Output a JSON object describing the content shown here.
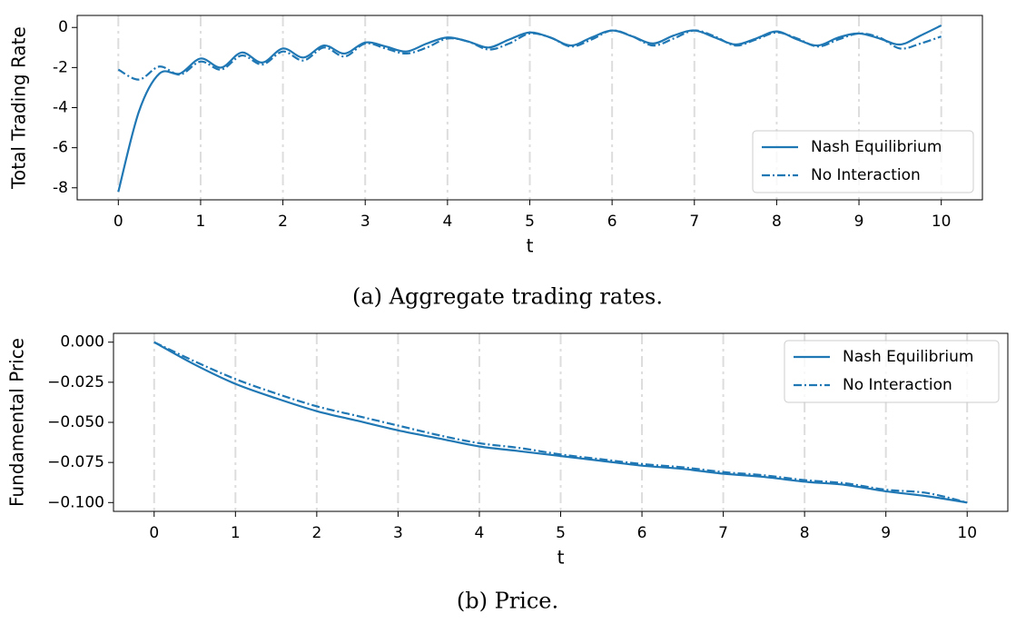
{
  "chart_data": [
    {
      "type": "line",
      "caption": "(a) Aggregate trading rates.",
      "xlabel": "t",
      "ylabel": "Total Trading Rate",
      "x": [
        0,
        0.25,
        0.5,
        0.75,
        1,
        1.25,
        1.5,
        1.75,
        2,
        2.25,
        2.5,
        2.75,
        3,
        3.25,
        3.5,
        3.75,
        4,
        4.25,
        4.5,
        4.75,
        5,
        5.25,
        5.5,
        5.75,
        6,
        6.25,
        6.5,
        6.75,
        7,
        7.25,
        7.5,
        7.75,
        8,
        8.25,
        8.5,
        8.75,
        9,
        9.25,
        9.5,
        9.75,
        10
      ],
      "series": [
        {
          "name": "Nash Equilibrium",
          "color": "#1f77b4",
          "linestyle": "solid",
          "values": [
            -8.2,
            -4.2,
            -2.3,
            -2.3,
            -1.55,
            -2.0,
            -1.25,
            -1.75,
            -1.05,
            -1.5,
            -0.9,
            -1.3,
            -0.75,
            -0.95,
            -1.2,
            -0.8,
            -0.5,
            -0.7,
            -1.0,
            -0.6,
            -0.25,
            -0.5,
            -0.9,
            -0.5,
            -0.15,
            -0.45,
            -0.8,
            -0.4,
            -0.15,
            -0.5,
            -0.85,
            -0.55,
            -0.2,
            -0.6,
            -0.9,
            -0.5,
            -0.3,
            -0.55,
            -0.85,
            -0.4,
            0.1
          ]
        },
        {
          "name": "No Interaction",
          "color": "#1f77b4",
          "linestyle": "dashdot",
          "values": [
            -2.1,
            -2.6,
            -1.95,
            -2.35,
            -1.7,
            -2.1,
            -1.4,
            -1.85,
            -1.2,
            -1.65,
            -1.0,
            -1.45,
            -0.8,
            -1.05,
            -1.3,
            -1.0,
            -0.55,
            -0.7,
            -1.1,
            -0.8,
            -0.3,
            -0.5,
            -0.95,
            -0.6,
            -0.15,
            -0.45,
            -0.9,
            -0.55,
            -0.15,
            -0.45,
            -0.9,
            -0.6,
            -0.25,
            -0.55,
            -0.95,
            -0.6,
            -0.3,
            -0.5,
            -1.05,
            -0.8,
            -0.45
          ]
        }
      ],
      "xlim": [
        -0.5,
        10.5
      ],
      "xticks": [
        0,
        1,
        2,
        3,
        4,
        5,
        6,
        7,
        8,
        9,
        10
      ],
      "ylim": [
        -8.6,
        0.6
      ],
      "yticks": [
        0,
        -2,
        -4,
        -6,
        -8
      ],
      "grid": "x",
      "legend": "lower right"
    },
    {
      "type": "line",
      "caption": "(b) Price.",
      "xlabel": "t",
      "ylabel": "Fundamental Price",
      "x": [
        0,
        0.5,
        1,
        1.5,
        2,
        2.5,
        3,
        3.5,
        4,
        4.5,
        5,
        5.5,
        6,
        6.5,
        7,
        7.5,
        8,
        8.5,
        9,
        9.5,
        10
      ],
      "series": [
        {
          "name": "Nash Equilibrium",
          "color": "#1f77b4",
          "linestyle": "solid",
          "values": [
            0,
            -0.014,
            -0.026,
            -0.035,
            -0.043,
            -0.049,
            -0.055,
            -0.06,
            -0.065,
            -0.068,
            -0.071,
            -0.074,
            -0.077,
            -0.079,
            -0.082,
            -0.084,
            -0.087,
            -0.089,
            -0.093,
            -0.096,
            -0.1
          ]
        },
        {
          "name": "No Interaction",
          "color": "#1f77b4",
          "linestyle": "dashdot",
          "values": [
            0,
            -0.012,
            -0.023,
            -0.032,
            -0.04,
            -0.046,
            -0.052,
            -0.058,
            -0.063,
            -0.066,
            -0.07,
            -0.073,
            -0.076,
            -0.078,
            -0.081,
            -0.083,
            -0.086,
            -0.088,
            -0.092,
            -0.094,
            -0.1
          ]
        }
      ],
      "xlim": [
        -0.5,
        10.5
      ],
      "xticks": [
        0,
        1,
        2,
        3,
        4,
        5,
        6,
        7,
        8,
        9,
        10
      ],
      "ylim": [
        -0.1055,
        0.0055
      ],
      "yticks": [
        {
          "value": 0,
          "label": "0.000"
        },
        {
          "value": -0.025,
          "label": "−0.025"
        },
        {
          "value": -0.05,
          "label": "−0.050"
        },
        {
          "value": -0.075,
          "label": "−0.075"
        },
        {
          "value": -0.1,
          "label": "−0.100"
        }
      ],
      "grid": "x",
      "legend": "upper right"
    }
  ]
}
